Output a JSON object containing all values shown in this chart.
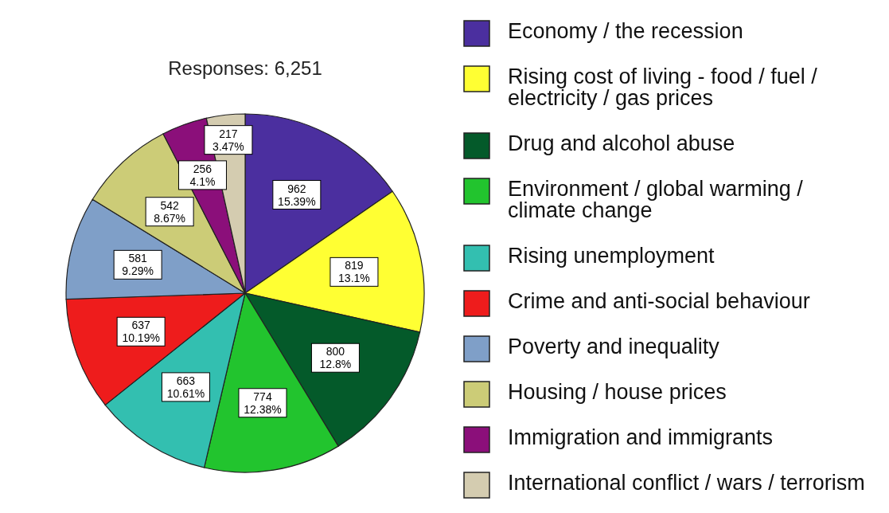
{
  "chart_data": {
    "type": "pie",
    "title": "Responses: 6,251",
    "categories": [
      "Economy / the recession",
      "Rising cost of living - food / fuel / electricity / gas prices",
      "Drug and alcohol abuse",
      "Environment / global warming / climate change",
      "Rising unemployment",
      "Crime and anti-social behaviour",
      "Poverty and inequality",
      "Housing / house prices",
      "Immigration and immigrants",
      "International conflict / wars / terrorism"
    ],
    "values": [
      962,
      819,
      800,
      774,
      663,
      637,
      581,
      542,
      256,
      217
    ],
    "value_labels": [
      "962\n15.39%",
      "819\n13.1%",
      "800\n12.8%",
      "774\n12.38%",
      "663\n10.61%",
      "637\n10.19%",
      "581\n9.29%",
      "542\n8.67%",
      "256\n4.1%",
      "217\n3.47%"
    ],
    "colors": [
      "#4b2f9f",
      "#ffff33",
      "#045a2a",
      "#22c42e",
      "#33bfb0",
      "#ee1c1c",
      "#7f9fc8",
      "#cccc77",
      "#8b0f7a",
      "#d4ccb0"
    ],
    "legend": "right"
  }
}
